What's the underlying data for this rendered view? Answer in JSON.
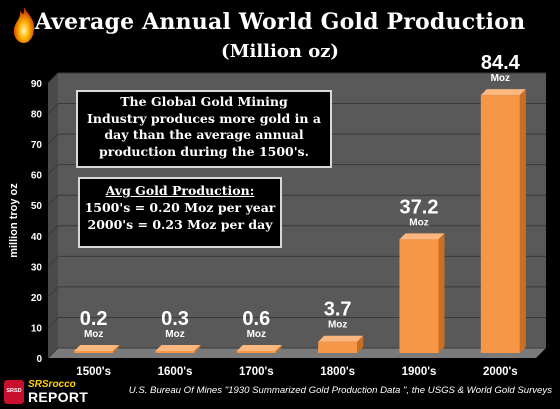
{
  "header": {
    "title": "Average Annual World Gold Production",
    "subtitle": "(Million oz)"
  },
  "callouts": {
    "main": [
      "The Global Gold Mining",
      "Industry produces more gold in a",
      "day than the average annual",
      "production during the 1500's."
    ],
    "avg_title": "Avg Gold Production:",
    "avg_lines": [
      "1500's = 0.20 Moz per year",
      "2000's = 0.23 Moz per day"
    ]
  },
  "source": "U.S. Bureau Of Mines \"1930 Summarized Gold Production Data \", the USGS & World Gold Surveys",
  "brand": {
    "stamp": "SRSD",
    "top": "SRSrocco",
    "bottom": "REPORT",
    "colors": {
      "stamp": "#c8102e",
      "top": "#ffd200"
    }
  },
  "colors": {
    "background": "#000000",
    "plot_area": "#595959",
    "bar": "#f79646",
    "grid": "#3a3a3a"
  },
  "chart_data": {
    "type": "bar",
    "categories": [
      "1500's",
      "1600's",
      "1700's",
      "1800's",
      "1900's",
      "2000's"
    ],
    "values": [
      0.2,
      0.3,
      0.6,
      3.7,
      37.2,
      84.4
    ],
    "value_labels": [
      "0.2",
      "0.3",
      "0.6",
      "3.7",
      "37.2",
      "84.4"
    ],
    "unit_label": "Moz",
    "title": "Average Annual World Gold Production",
    "subtitle": "(Million oz)",
    "xlabel": "",
    "ylabel": "million troy oz",
    "ylim": [
      0,
      90
    ],
    "yticks": [
      0,
      10,
      20,
      30,
      40,
      50,
      60,
      70,
      80,
      90
    ],
    "grid": true,
    "legend": "none"
  }
}
